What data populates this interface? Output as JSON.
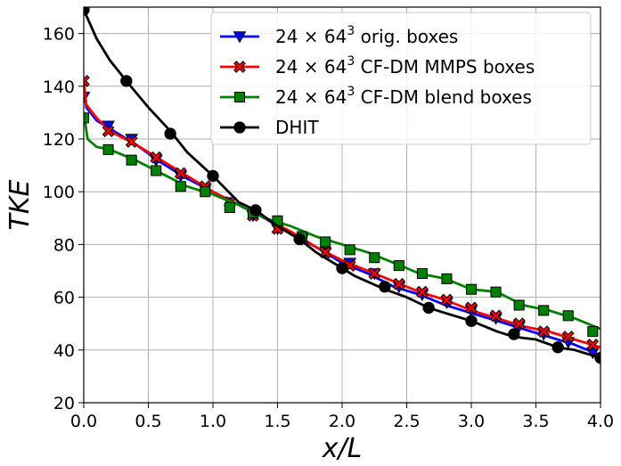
{
  "chart_data": {
    "type": "line",
    "xlabel": "x/L",
    "ylabel": "TKE",
    "xlim": [
      0.0,
      4.0
    ],
    "ylim": [
      20,
      170
    ],
    "xticks": [
      "0.0",
      "0.5",
      "1.0",
      "1.5",
      "2.0",
      "2.5",
      "3.0",
      "3.5",
      "4.0"
    ],
    "yticks": [
      "20",
      "40",
      "60",
      "80",
      "100",
      "120",
      "140",
      "160"
    ],
    "grid": true,
    "legend_position": "top-right",
    "series": [
      {
        "name": "24 × 64³ orig. boxes",
        "label_base": "24 × 64",
        "label_sup": "3",
        "label_rest": " orig. boxes",
        "color": "#0000ff",
        "marker": "triangle-down",
        "line": [
          [
            0.0,
            140
          ],
          [
            0.02,
            132
          ],
          [
            0.1,
            127
          ],
          [
            0.2,
            124
          ],
          [
            0.4,
            118
          ],
          [
            0.6,
            111
          ],
          [
            0.8,
            105
          ],
          [
            1.0,
            100
          ],
          [
            1.2,
            95
          ],
          [
            1.4,
            90
          ],
          [
            1.6,
            84
          ],
          [
            1.8,
            79
          ],
          [
            2.0,
            73
          ],
          [
            2.2,
            69
          ],
          [
            2.4,
            64
          ],
          [
            2.6,
            61
          ],
          [
            2.8,
            57
          ],
          [
            3.0,
            54
          ],
          [
            3.2,
            51
          ],
          [
            3.4,
            48
          ],
          [
            3.6,
            45
          ],
          [
            3.8,
            42
          ],
          [
            4.0,
            38
          ]
        ],
        "markers": [
          [
            0.0,
            136
          ],
          [
            0.19,
            125
          ],
          [
            0.37,
            120
          ],
          [
            0.56,
            112
          ],
          [
            0.75,
            106
          ],
          [
            0.94,
            101
          ],
          [
            1.13,
            96
          ],
          [
            1.31,
            91
          ],
          [
            1.5,
            86
          ],
          [
            1.69,
            82
          ],
          [
            1.87,
            77
          ],
          [
            2.06,
            73
          ],
          [
            2.25,
            69
          ],
          [
            2.44,
            64
          ],
          [
            2.62,
            61
          ],
          [
            2.81,
            58
          ],
          [
            3.0,
            55
          ],
          [
            3.19,
            52
          ],
          [
            3.37,
            49
          ],
          [
            3.56,
            46
          ],
          [
            3.75,
            43
          ],
          [
            3.94,
            39
          ]
        ]
      },
      {
        "name": "24 × 64³ CF-DM MMPS boxes",
        "label_base": "24 × 64",
        "label_sup": "3",
        "label_rest": " CF-DM MMPS boxes",
        "color": "#ff0000",
        "marker": "x-filled",
        "line": [
          [
            0.0,
            142
          ],
          [
            0.02,
            133
          ],
          [
            0.1,
            128
          ],
          [
            0.2,
            123
          ],
          [
            0.4,
            118
          ],
          [
            0.6,
            112
          ],
          [
            0.8,
            106
          ],
          [
            1.0,
            100
          ],
          [
            1.2,
            95
          ],
          [
            1.4,
            90
          ],
          [
            1.6,
            85
          ],
          [
            1.8,
            79
          ],
          [
            2.0,
            74
          ],
          [
            2.2,
            70
          ],
          [
            2.4,
            66
          ],
          [
            2.6,
            62
          ],
          [
            2.8,
            59
          ],
          [
            3.0,
            55
          ],
          [
            3.2,
            52
          ],
          [
            3.4,
            49
          ],
          [
            3.6,
            47
          ],
          [
            3.8,
            44
          ],
          [
            4.0,
            41
          ]
        ],
        "markers": [
          [
            0.0,
            142
          ],
          [
            0.19,
            123
          ],
          [
            0.37,
            119
          ],
          [
            0.56,
            113
          ],
          [
            0.75,
            107
          ],
          [
            0.94,
            102
          ],
          [
            1.13,
            96
          ],
          [
            1.31,
            91
          ],
          [
            1.5,
            86
          ],
          [
            1.69,
            82
          ],
          [
            1.87,
            77
          ],
          [
            2.06,
            72
          ],
          [
            2.25,
            69
          ],
          [
            2.44,
            65
          ],
          [
            2.62,
            62
          ],
          [
            2.81,
            59
          ],
          [
            3.0,
            56
          ],
          [
            3.19,
            53
          ],
          [
            3.37,
            50
          ],
          [
            3.56,
            47
          ],
          [
            3.75,
            45
          ],
          [
            3.94,
            42
          ]
        ]
      },
      {
        "name": "24 × 64³ CF-DM blend boxes",
        "label_base": "24 × 64",
        "label_sup": "3",
        "label_rest": " CF-DM blend boxes",
        "color": "#008000",
        "marker": "square",
        "line": [
          [
            0.0,
            130
          ],
          [
            0.03,
            120
          ],
          [
            0.1,
            117
          ],
          [
            0.2,
            116
          ],
          [
            0.4,
            112
          ],
          [
            0.6,
            107
          ],
          [
            0.8,
            102
          ],
          [
            1.0,
            99
          ],
          [
            1.2,
            95
          ],
          [
            1.4,
            90
          ],
          [
            1.6,
            87
          ],
          [
            1.8,
            83
          ],
          [
            2.0,
            80
          ],
          [
            2.2,
            77
          ],
          [
            2.4,
            73
          ],
          [
            2.6,
            69
          ],
          [
            2.8,
            67
          ],
          [
            3.0,
            63
          ],
          [
            3.2,
            62
          ],
          [
            3.4,
            57
          ],
          [
            3.6,
            55
          ],
          [
            3.8,
            52
          ],
          [
            4.0,
            48
          ]
        ],
        "markers": [
          [
            0.0,
            128
          ],
          [
            0.19,
            116
          ],
          [
            0.37,
            112
          ],
          [
            0.56,
            108
          ],
          [
            0.75,
            102
          ],
          [
            0.94,
            100
          ],
          [
            1.13,
            94
          ],
          [
            1.31,
            92
          ],
          [
            1.5,
            89
          ],
          [
            1.69,
            83
          ],
          [
            1.87,
            81
          ],
          [
            2.06,
            78
          ],
          [
            2.25,
            75
          ],
          [
            2.44,
            72
          ],
          [
            2.62,
            69
          ],
          [
            2.81,
            67
          ],
          [
            3.0,
            63
          ],
          [
            3.19,
            62
          ],
          [
            3.37,
            57
          ],
          [
            3.56,
            55
          ],
          [
            3.75,
            53
          ],
          [
            3.94,
            47
          ]
        ]
      },
      {
        "name": "DHIT",
        "label_base": "DHIT",
        "label_sup": "",
        "label_rest": "",
        "color": "#000000",
        "marker": "circle",
        "line": [
          [
            0.0,
            169
          ],
          [
            0.1,
            158
          ],
          [
            0.2,
            150
          ],
          [
            0.33,
            142
          ],
          [
            0.5,
            132
          ],
          [
            0.67,
            123
          ],
          [
            0.8,
            115
          ],
          [
            1.0,
            106
          ],
          [
            1.1,
            101
          ],
          [
            1.2,
            96
          ],
          [
            1.33,
            93
          ],
          [
            1.5,
            87
          ],
          [
            1.67,
            82
          ],
          [
            1.8,
            77
          ],
          [
            2.0,
            71
          ],
          [
            2.1,
            68
          ],
          [
            2.33,
            63
          ],
          [
            2.5,
            60
          ],
          [
            2.67,
            56
          ],
          [
            2.8,
            54
          ],
          [
            3.0,
            51
          ],
          [
            3.2,
            47
          ],
          [
            3.33,
            45
          ],
          [
            3.5,
            44
          ],
          [
            3.67,
            41
          ],
          [
            3.8,
            40
          ],
          [
            4.0,
            37
          ]
        ],
        "markers": [
          [
            0.0,
            169
          ],
          [
            0.33,
            142
          ],
          [
            0.67,
            122
          ],
          [
            1.0,
            106
          ],
          [
            1.33,
            93
          ],
          [
            1.67,
            82
          ],
          [
            2.0,
            71
          ],
          [
            2.33,
            64
          ],
          [
            2.67,
            56
          ],
          [
            3.0,
            51
          ],
          [
            3.33,
            46
          ],
          [
            3.67,
            41
          ],
          [
            4.0,
            37
          ]
        ]
      }
    ]
  }
}
